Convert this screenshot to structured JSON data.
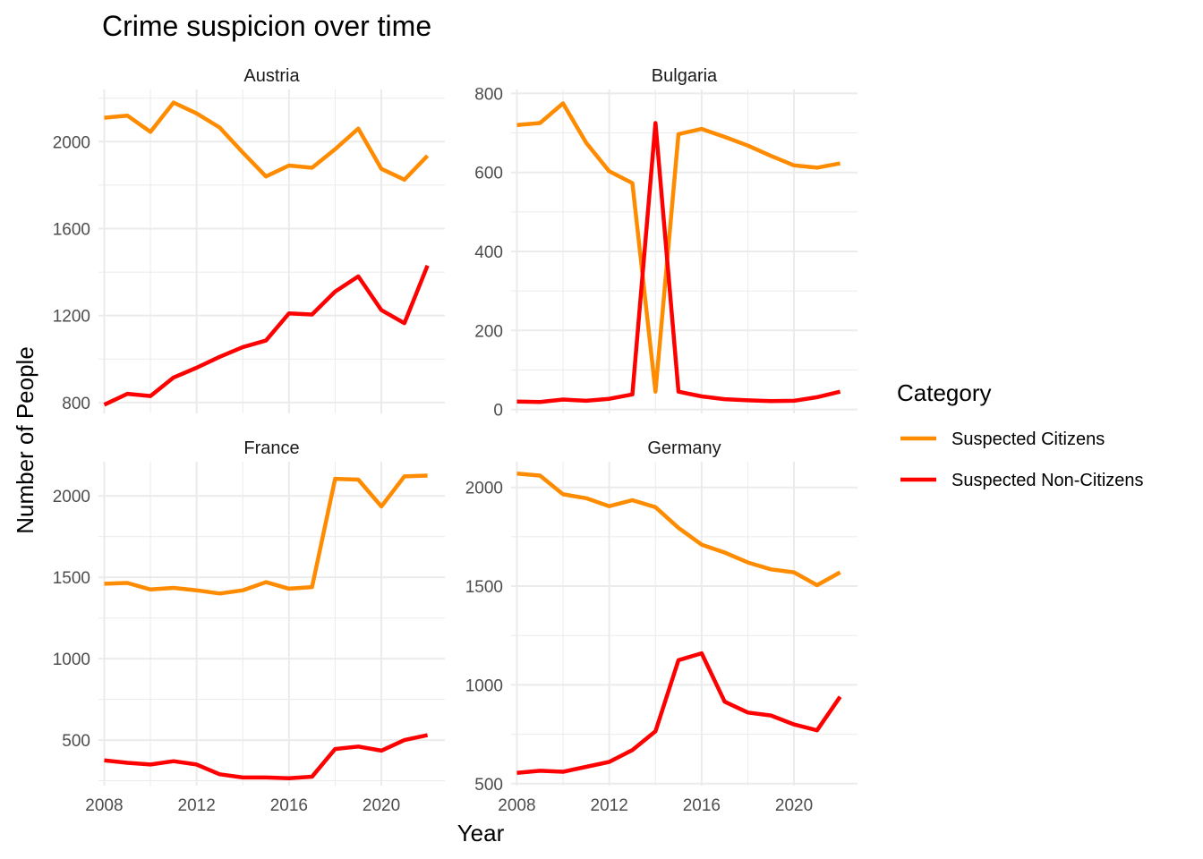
{
  "chart_data": {
    "type": "line",
    "title": "Crime suspicion over time",
    "xlabel": "Year",
    "ylabel": "Number of People",
    "legend": {
      "title": "Category",
      "position": "right",
      "entries": [
        {
          "name": "Suspected Citizens",
          "color": "#ff8c00"
        },
        {
          "name": "Suspected Non-Citizens",
          "color": "#ff0000"
        }
      ]
    },
    "x": [
      2008,
      2009,
      2010,
      2011,
      2012,
      2013,
      2014,
      2015,
      2016,
      2017,
      2018,
      2019,
      2020,
      2021,
      2022
    ],
    "x_ticks": [
      "2008",
      "2012",
      "2016",
      "2020"
    ],
    "xlim": [
      2007.75,
      2022.75
    ],
    "grid": true,
    "facets": [
      {
        "name": "Austria",
        "ylim": [
          750,
          2240
        ],
        "y_ticks": [
          "800",
          "1200",
          "1600",
          "2000"
        ],
        "series": [
          {
            "name": "Suspected Citizens",
            "values": [
              2110,
              2120,
              2045,
              2180,
              2130,
              2065,
              1950,
              1840,
              1890,
              1880,
              1965,
              2060,
              1875,
              1825,
              1935
            ]
          },
          {
            "name": "Suspected Non-Citizens",
            "values": [
              790,
              840,
              830,
              915,
              960,
              1010,
              1055,
              1085,
              1210,
              1205,
              1310,
              1380,
              1225,
              1165,
              1430
            ]
          }
        ]
      },
      {
        "name": "Bulgaria",
        "ylim": [
          -10,
          810
        ],
        "y_ticks": [
          "0",
          "200",
          "400",
          "600",
          "800"
        ],
        "series": [
          {
            "name": "Suspected Citizens",
            "values": [
              720,
              725,
              775,
              675,
              603,
              573,
              45,
              697,
              710,
              690,
              668,
              642,
              618,
              612,
              623
            ]
          },
          {
            "name": "Suspected Non-Citizens",
            "values": [
              20,
              19,
              25,
              22,
              27,
              38,
              725,
              45,
              33,
              26,
              23,
              21,
              22,
              31,
              45
            ]
          }
        ]
      },
      {
        "name": "France",
        "ylim": [
          220,
          2210
        ],
        "y_ticks": [
          "500",
          "1000",
          "1500",
          "2000"
        ],
        "series": [
          {
            "name": "Suspected Citizens",
            "values": [
              1460,
              1465,
              1425,
              1435,
              1420,
              1400,
              1420,
              1470,
              1430,
              1440,
              2105,
              2100,
              1935,
              2120,
              2125
            ]
          },
          {
            "name": "Suspected Non-Citizens",
            "values": [
              375,
              360,
              350,
              370,
              350,
              290,
              270,
              270,
              265,
              275,
              445,
              460,
              435,
              500,
              530
            ]
          }
        ]
      },
      {
        "name": "Germany",
        "ylim": [
          490,
          2130
        ],
        "y_ticks": [
          "500",
          "1000",
          "1500",
          "2000"
        ],
        "series": [
          {
            "name": "Suspected Citizens",
            "values": [
              2070,
              2060,
              1965,
              1945,
              1905,
              1935,
              1900,
              1795,
              1710,
              1670,
              1620,
              1585,
              1570,
              1505,
              1570
            ]
          },
          {
            "name": "Suspected Non-Citizens",
            "values": [
              555,
              565,
              560,
              585,
              610,
              670,
              765,
              1125,
              1160,
              915,
              860,
              845,
              800,
              770,
              940
            ]
          }
        ]
      }
    ]
  }
}
